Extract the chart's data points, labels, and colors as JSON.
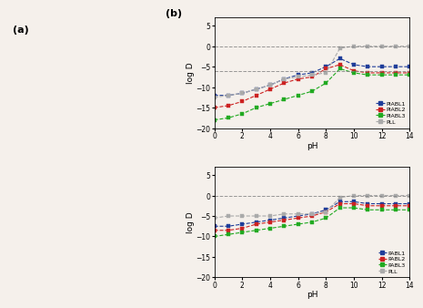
{
  "title_a": "(a)",
  "title_b": "(b)",
  "background_color": "#f5f0eb",
  "top_plot": {
    "title": "",
    "xlabel": "pH",
    "ylabel": "log D",
    "ylim": [
      -20,
      7
    ],
    "xlim": [
      0,
      14
    ],
    "yticks": [
      -20,
      -15,
      -10,
      -5,
      0,
      5
    ],
    "xticks": [
      0,
      2,
      4,
      6,
      8,
      10,
      12,
      14
    ],
    "hlines": [
      0,
      -6
    ],
    "series": {
      "PIABL1": {
        "color": "#1f3d99",
        "marker": "s",
        "x": [
          0,
          1,
          2,
          3,
          4,
          5,
          6,
          7,
          8,
          9,
          10,
          11,
          12,
          13,
          14
        ],
        "y": [
          -12.0,
          -12.0,
          -11.5,
          -10.5,
          -9.5,
          -8.0,
          -7.0,
          -6.5,
          -5.0,
          -3.0,
          -4.5,
          -5.0,
          -5.0,
          -5.0,
          -5.0
        ]
      },
      "PIABL2": {
        "color": "#cc2222",
        "marker": "s",
        "x": [
          0,
          1,
          2,
          3,
          4,
          5,
          6,
          7,
          8,
          9,
          10,
          11,
          12,
          13,
          14
        ],
        "y": [
          -15.0,
          -14.5,
          -13.5,
          -12.0,
          -10.5,
          -9.0,
          -8.0,
          -7.5,
          -5.5,
          -4.5,
          -6.0,
          -6.5,
          -6.5,
          -6.5,
          -6.5
        ]
      },
      "PIABL3": {
        "color": "#22aa22",
        "marker": "s",
        "x": [
          0,
          1,
          2,
          3,
          4,
          5,
          6,
          7,
          8,
          9,
          10,
          11,
          12,
          13,
          14
        ],
        "y": [
          -18.0,
          -17.5,
          -16.5,
          -15.0,
          -14.0,
          -13.0,
          -12.0,
          -11.0,
          -9.0,
          -5.5,
          -6.5,
          -7.0,
          -7.0,
          -7.0,
          -7.0
        ]
      },
      "PLL": {
        "color": "#aaaaaa",
        "marker": "s",
        "x": [
          0,
          1,
          2,
          3,
          4,
          5,
          6,
          7,
          8,
          9,
          10,
          11,
          12,
          13,
          14
        ],
        "y": [
          -12.5,
          -12.0,
          -11.5,
          -10.5,
          -9.5,
          -8.0,
          -7.5,
          -7.0,
          -6.5,
          -0.5,
          0.0,
          0.0,
          0.0,
          0.0,
          0.0
        ]
      }
    },
    "legend_labels": [
      "PIABL1",
      "PIABL2",
      "PIABL3",
      "PLL"
    ],
    "legend_colors": [
      "#1f3d99",
      "#cc2222",
      "#22aa22",
      "#aaaaaa"
    ]
  },
  "bottom_plot": {
    "title": "",
    "xlabel": "pH",
    "ylabel": "log D",
    "ylim": [
      -20,
      7
    ],
    "xlim": [
      0,
      14
    ],
    "yticks": [
      -20,
      -15,
      -10,
      -5,
      0,
      5
    ],
    "xticks": [
      0,
      2,
      4,
      6,
      8,
      10,
      12,
      14
    ],
    "hlines": [
      0
    ],
    "series": {
      "PABL1": {
        "color": "#1f3d99",
        "marker": "s",
        "x": [
          0,
          1,
          2,
          3,
          4,
          5,
          6,
          7,
          8,
          9,
          10,
          11,
          12,
          13,
          14
        ],
        "y": [
          -7.5,
          -7.5,
          -7.0,
          -6.5,
          -6.0,
          -5.5,
          -5.0,
          -4.5,
          -3.5,
          -1.5,
          -1.5,
          -2.0,
          -2.0,
          -2.0,
          -2.0
        ]
      },
      "PABL2": {
        "color": "#cc2222",
        "marker": "s",
        "x": [
          0,
          1,
          2,
          3,
          4,
          5,
          6,
          7,
          8,
          9,
          10,
          11,
          12,
          13,
          14
        ],
        "y": [
          -8.5,
          -8.5,
          -8.0,
          -7.0,
          -6.5,
          -6.0,
          -5.5,
          -5.0,
          -4.0,
          -2.0,
          -2.0,
          -2.5,
          -2.5,
          -2.5,
          -2.5
        ]
      },
      "PABL3": {
        "color": "#22aa22",
        "marker": "s",
        "x": [
          0,
          1,
          2,
          3,
          4,
          5,
          6,
          7,
          8,
          9,
          10,
          11,
          12,
          13,
          14
        ],
        "y": [
          -10.0,
          -9.5,
          -9.0,
          -8.5,
          -8.0,
          -7.5,
          -7.0,
          -6.5,
          -5.5,
          -3.0,
          -3.0,
          -3.5,
          -3.5,
          -3.5,
          -3.5
        ]
      },
      "PLL": {
        "color": "#aaaaaa",
        "marker": "s",
        "x": [
          0,
          1,
          2,
          3,
          4,
          5,
          6,
          7,
          8,
          9,
          10,
          11,
          12,
          13,
          14
        ],
        "y": [
          -5.5,
          -5.0,
          -5.0,
          -5.0,
          -5.0,
          -4.5,
          -4.5,
          -4.5,
          -4.0,
          -0.5,
          0.0,
          0.0,
          0.0,
          0.0,
          0.0
        ]
      }
    },
    "legend_labels": [
      "PABL1",
      "PABL2",
      "PABL3",
      "PLL"
    ],
    "legend_colors": [
      "#1f3d99",
      "#cc2222",
      "#22aa22",
      "#aaaaaa"
    ]
  }
}
